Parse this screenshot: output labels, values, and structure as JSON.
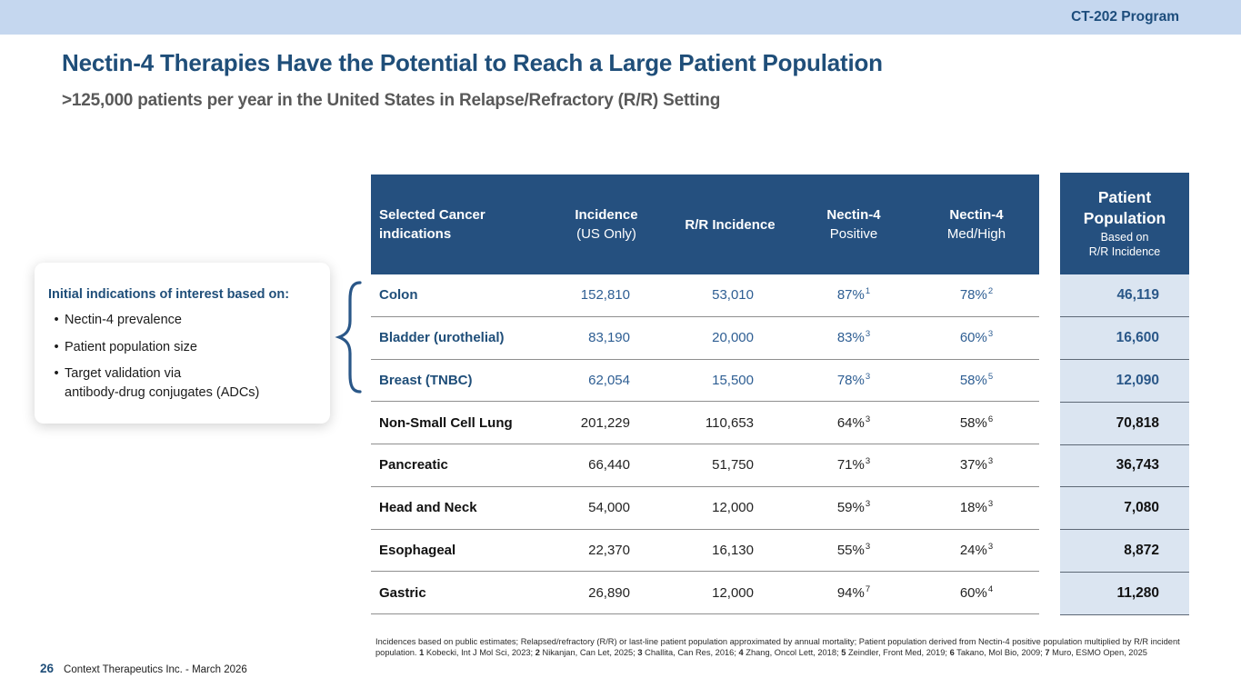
{
  "top_bar": {
    "program_label": "CT-202 Program"
  },
  "header": {
    "title": "Nectin-4 Therapies Have the Potential to Reach a Large Patient Population",
    "subtitle": ">125,000 patients per year in the United States in Relapse/Refractory (R/R) Setting"
  },
  "callout": {
    "heading": "Initial indications of interest based on:",
    "bullets": [
      "Nectin-4 prevalence",
      "Patient population size",
      "Target validation via\nantibody-drug conjugates (ADCs)"
    ]
  },
  "table": {
    "columns": {
      "indication": {
        "line1": "Selected Cancer",
        "line2": "indications"
      },
      "incidence": {
        "line1": "Incidence",
        "line2": "(US Only)"
      },
      "rr_incidence": "R/R Incidence",
      "nectin_positive": {
        "line1": "Nectin-4",
        "line2": "Positive"
      },
      "nectin_medhigh": {
        "line1": "Nectin-4",
        "line2": "Med/High"
      }
    },
    "rows": [
      {
        "indication": "Colon",
        "incidence": "152,810",
        "rr_incidence": "53,010",
        "nectin_positive": "87%",
        "nectin_positive_sup": "1",
        "nectin_medhigh": "78%",
        "nectin_medhigh_sup": "2",
        "highlight": true
      },
      {
        "indication": "Bladder (urothelial)",
        "incidence": "83,190",
        "rr_incidence": "20,000",
        "nectin_positive": "83%",
        "nectin_positive_sup": "3",
        "nectin_medhigh": "60%",
        "nectin_medhigh_sup": "3",
        "highlight": true
      },
      {
        "indication": "Breast (TNBC)",
        "incidence": "62,054",
        "rr_incidence": "15,500",
        "nectin_positive": "78%",
        "nectin_positive_sup": "3",
        "nectin_medhigh": "58%",
        "nectin_medhigh_sup": "5",
        "highlight": true
      },
      {
        "indication": "Non-Small Cell Lung",
        "incidence": "201,229",
        "rr_incidence": "110,653",
        "nectin_positive": "64%",
        "nectin_positive_sup": "3",
        "nectin_medhigh": "58%",
        "nectin_medhigh_sup": "6",
        "highlight": false
      },
      {
        "indication": "Pancreatic",
        "incidence": "66,440",
        "rr_incidence": "51,750",
        "nectin_positive": "71%",
        "nectin_positive_sup": "3",
        "nectin_medhigh": "37%",
        "nectin_medhigh_sup": "3",
        "highlight": false
      },
      {
        "indication": "Head and Neck",
        "incidence": "54,000",
        "rr_incidence": "12,000",
        "nectin_positive": "59%",
        "nectin_positive_sup": "3",
        "nectin_medhigh": "18%",
        "nectin_medhigh_sup": "3",
        "highlight": false
      },
      {
        "indication": "Esophageal",
        "incidence": "22,370",
        "rr_incidence": "16,130",
        "nectin_positive": "55%",
        "nectin_positive_sup": "3",
        "nectin_medhigh": "24%",
        "nectin_medhigh_sup": "3",
        "highlight": false
      },
      {
        "indication": "Gastric",
        "incidence": "26,890",
        "rr_incidence": "12,000",
        "nectin_positive": "94%",
        "nectin_positive_sup": "7",
        "nectin_medhigh": "60%",
        "nectin_medhigh_sup": "4",
        "highlight": false
      }
    ]
  },
  "population_panel": {
    "header": {
      "title_line1": "Patient",
      "title_line2": "Population",
      "sub_line1": "Based on",
      "sub_line2": "R/R Incidence"
    },
    "values": [
      {
        "value": "46,119",
        "highlight": true
      },
      {
        "value": "16,600",
        "highlight": true
      },
      {
        "value": "12,090",
        "highlight": true
      },
      {
        "value": "70,818",
        "highlight": false
      },
      {
        "value": "36,743",
        "highlight": false
      },
      {
        "value": "7,080",
        "highlight": false
      },
      {
        "value": "8,872",
        "highlight": false
      },
      {
        "value": "11,280",
        "highlight": false
      }
    ]
  },
  "footnote": {
    "segments": [
      {
        "t": "Incidences based on public estimates; Relapsed/refractory (R/R) or last-line patient population approximated by annual mortality; Patient population derived from Nectin-4 positive population multiplied by R/R incident population. ",
        "b": false
      },
      {
        "t": "1",
        "b": true
      },
      {
        "t": " Kobecki, Int J Mol Sci, 2023; ",
        "b": false
      },
      {
        "t": "2",
        "b": true
      },
      {
        "t": " Nikanjan, Can Let, 2025; ",
        "b": false
      },
      {
        "t": "3",
        "b": true
      },
      {
        "t": " Challita, Can Res, 2016; ",
        "b": false
      },
      {
        "t": "4",
        "b": true
      },
      {
        "t": " Zhang, Oncol Lett, 2018; ",
        "b": false
      },
      {
        "t": "5",
        "b": true
      },
      {
        "t": " Zeindler, Front Med, 2019; ",
        "b": false
      },
      {
        "t": "6",
        "b": true
      },
      {
        "t": " Takano, Mol Bio, 2009; ",
        "b": false
      },
      {
        "t": "7",
        "b": true
      },
      {
        "t": " Muro, ESMO Open, 2025",
        "b": false
      }
    ]
  },
  "footer": {
    "page_number": "26",
    "company": "Context Therapeutics Inc. - March 2026"
  },
  "colors": {
    "top_bar_bg": "#c5d7ef",
    "header_navy": "#25507f",
    "title_blue": "#1f4e79",
    "highlight_text_blue": "#2e5e93",
    "population_cell_bg": "#dbe5f1",
    "subtitle_gray": "#595959"
  }
}
